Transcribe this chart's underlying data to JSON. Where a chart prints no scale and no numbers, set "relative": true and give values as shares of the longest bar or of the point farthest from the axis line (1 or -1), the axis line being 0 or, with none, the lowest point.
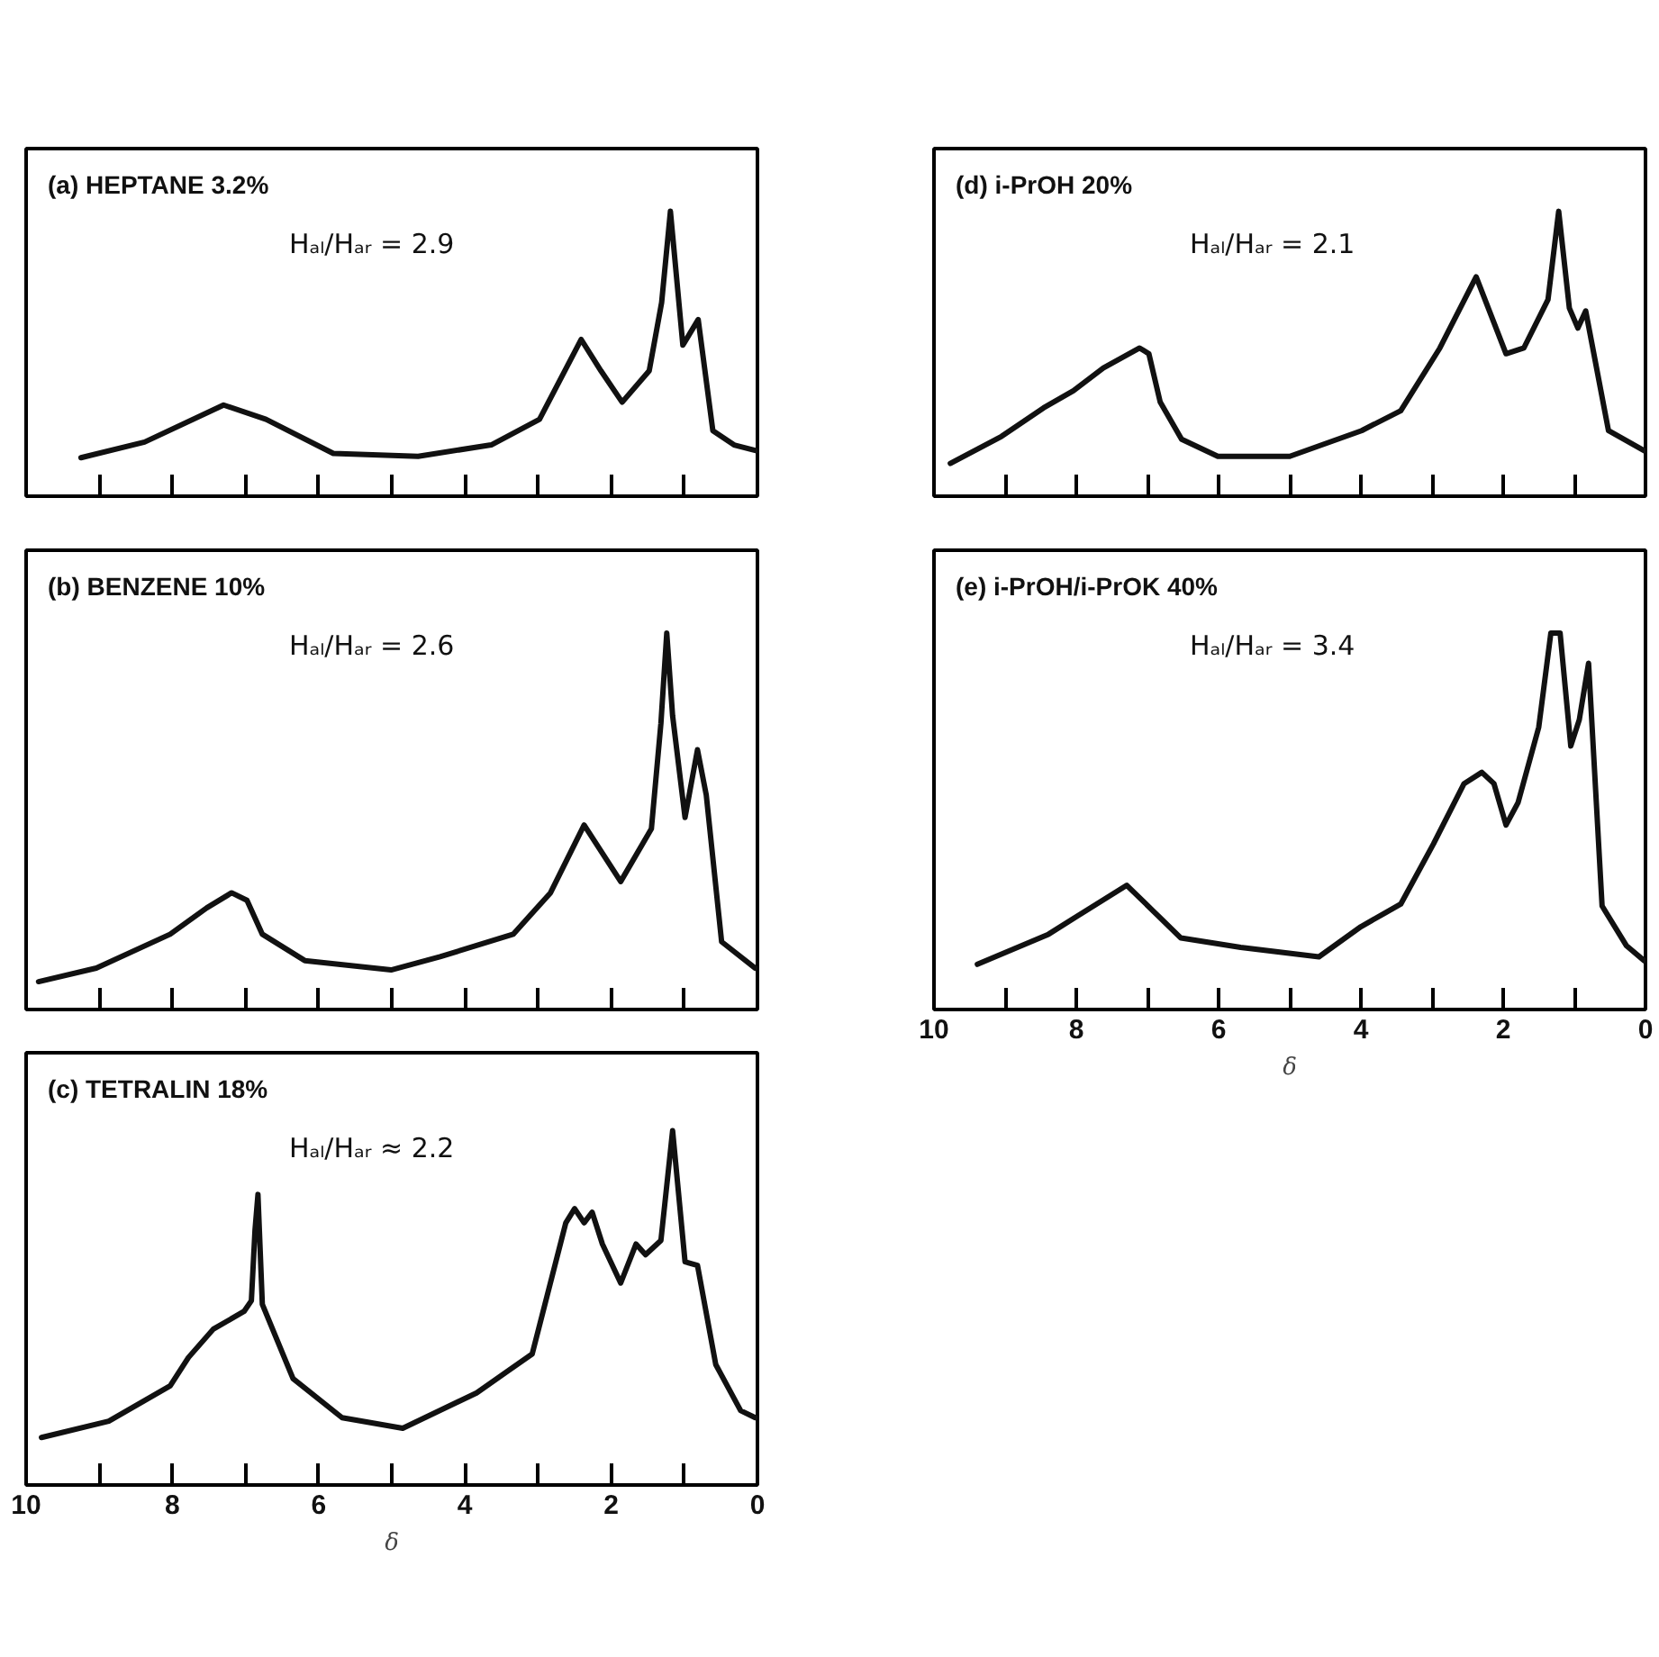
{
  "chart_data": [
    {
      "type": "line",
      "title": "(a) HEPTANE 3.2%",
      "annotations": [
        "Hₐₗ/Hₐᵣ = 2.9"
      ],
      "relative": true,
      "color": "#111111",
      "xlim": [
        10,
        0
      ],
      "xticks": [
        10,
        9,
        8,
        7,
        6,
        5,
        4,
        3,
        2,
        1,
        0
      ],
      "tick_labels": false,
      "x": [
        9.25,
        8.38,
        7.3,
        6.72,
        5.8,
        4.64,
        3.64,
        2.98,
        2.41,
        2.14,
        1.85,
        1.48,
        1.31,
        1.19,
        1.02,
        0.81,
        0.61,
        0.32,
        0.02
      ],
      "values": [
        0.135,
        0.19,
        0.32,
        0.27,
        0.15,
        0.14,
        0.18,
        0.27,
        0.55,
        0.44,
        0.33,
        0.44,
        0.68,
        1.0,
        0.53,
        0.62,
        0.23,
        0.18,
        0.16
      ]
    },
    {
      "type": "line",
      "title": "(b) BENZENE 10%",
      "annotations": [
        "Hₐₗ/Hₐᵣ = 2.6"
      ],
      "relative": true,
      "color": "#111111",
      "xlim": [
        10,
        0
      ],
      "xticks": [
        10,
        9,
        8,
        7,
        6,
        5,
        4,
        3,
        2,
        1,
        0
      ],
      "tick_labels": false,
      "x": [
        9.83,
        9.04,
        8.03,
        7.53,
        7.19,
        6.98,
        6.77,
        6.19,
        5.01,
        4.34,
        3.34,
        2.83,
        2.37,
        1.87,
        1.45,
        1.32,
        1.24,
        1.16,
        0.99,
        0.82,
        0.7,
        0.49,
        0.03
      ],
      "values": [
        0.074,
        0.11,
        0.2,
        0.27,
        0.31,
        0.29,
        0.2,
        0.13,
        0.105,
        0.14,
        0.2,
        0.31,
        0.49,
        0.34,
        0.48,
        0.76,
        1.0,
        0.78,
        0.51,
        0.69,
        0.57,
        0.18,
        0.11
      ]
    },
    {
      "type": "line",
      "title": "(c) TETRALIN 18%",
      "annotations": [
        "Hₐₗ/Hₐᵣ ≈ 2.2"
      ],
      "xlabel": "δ",
      "relative": true,
      "color": "#111111",
      "xlim": [
        10,
        0
      ],
      "xticks": [
        10,
        {
          "value": 9,
          "label": null
        },
        8,
        {
          "value": 7,
          "label": null
        },
        6,
        {
          "value": 5,
          "label": null
        },
        4,
        {
          "value": 3,
          "label": null
        },
        2,
        {
          "value": 1,
          "label": null
        },
        0
      ],
      "x": [
        9.79,
        8.87,
        8.03,
        7.78,
        7.44,
        7.02,
        6.92,
        6.87,
        6.83,
        6.77,
        6.35,
        5.68,
        4.85,
        3.84,
        3.08,
        2.62,
        2.5,
        2.37,
        2.26,
        2.12,
        1.87,
        1.66,
        1.53,
        1.32,
        1.16,
        0.99,
        0.82,
        0.57,
        0.23,
        0.03
      ],
      "values": [
        0.134,
        0.18,
        0.28,
        0.36,
        0.44,
        0.49,
        0.52,
        0.72,
        0.82,
        0.51,
        0.3,
        0.19,
        0.16,
        0.26,
        0.37,
        0.74,
        0.78,
        0.74,
        0.77,
        0.68,
        0.57,
        0.68,
        0.65,
        0.69,
        1.0,
        0.63,
        0.62,
        0.34,
        0.21,
        0.19
      ]
    },
    {
      "type": "line",
      "title": "(d) i-PrOH 20%",
      "annotations": [
        "Hₐₗ/Hₐᵣ = 2.1"
      ],
      "relative": true,
      "color": "#111111",
      "xlim": [
        10,
        0
      ],
      "xticks": [
        10,
        9,
        8,
        7,
        6,
        5,
        4,
        3,
        2,
        1,
        0
      ],
      "tick_labels": false,
      "x": [
        9.77,
        9.05,
        8.46,
        8.04,
        7.62,
        7.11,
        6.98,
        6.82,
        6.52,
        6.01,
        5.0,
        3.99,
        3.44,
        2.89,
        2.38,
        1.96,
        1.71,
        1.37,
        1.22,
        1.07,
        0.95,
        0.84,
        0.52,
        0.02
      ],
      "values": [
        0.115,
        0.21,
        0.31,
        0.37,
        0.45,
        0.52,
        0.5,
        0.33,
        0.2,
        0.14,
        0.14,
        0.23,
        0.3,
        0.52,
        0.77,
        0.5,
        0.52,
        0.69,
        1.0,
        0.66,
        0.59,
        0.65,
        0.23,
        0.16
      ]
    },
    {
      "type": "line",
      "title": "(e)  i-PrOH/i-PrOK 40%",
      "annotations": [
        "Hₐₗ/Hₐᵣ = 3.4"
      ],
      "xlabel": "δ",
      "relative": true,
      "color": "#111111",
      "xlim": [
        10,
        0
      ],
      "xticks": [
        10,
        {
          "value": 9,
          "label": null
        },
        8,
        {
          "value": 7,
          "label": null
        },
        6,
        {
          "value": 5,
          "label": null
        },
        4,
        {
          "value": 3,
          "label": null
        },
        2,
        {
          "value": 1,
          "label": null
        },
        0
      ],
      "x": [
        9.39,
        8.39,
        7.97,
        7.29,
        6.91,
        6.53,
        5.69,
        4.59,
        4.0,
        3.44,
        2.98,
        2.55,
        2.3,
        2.13,
        1.96,
        1.79,
        1.5,
        1.33,
        1.2,
        1.05,
        0.93,
        0.8,
        0.61,
        0.27,
        0.02
      ],
      "values": [
        0.12,
        0.2,
        0.25,
        0.33,
        0.26,
        0.19,
        0.165,
        0.14,
        0.22,
        0.28,
        0.44,
        0.6,
        0.63,
        0.6,
        0.49,
        0.55,
        0.75,
        1.0,
        1.0,
        0.7,
        0.77,
        0.92,
        0.275,
        0.17,
        0.13
      ]
    }
  ]
}
